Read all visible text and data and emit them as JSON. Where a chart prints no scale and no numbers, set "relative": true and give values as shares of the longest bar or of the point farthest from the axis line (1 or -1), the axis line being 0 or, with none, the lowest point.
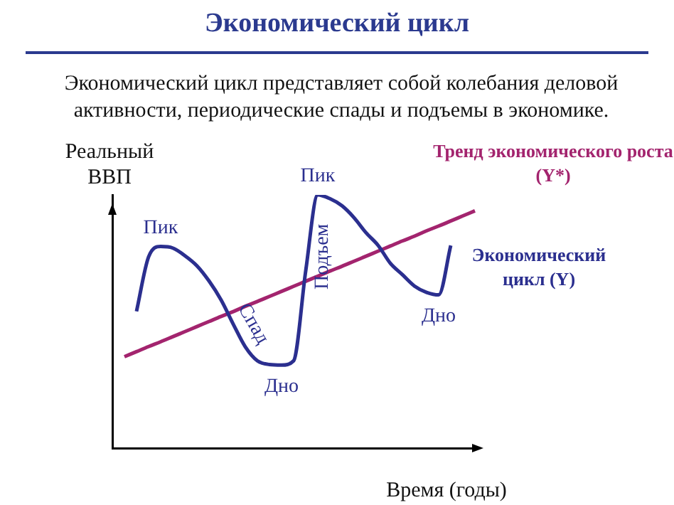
{
  "chart_data": {
    "type": "line",
    "relative": true,
    "title": "Экономический  цикл",
    "subtitle": "Экономический  цикл представляет собой колебания деловой активности, периодические спады и подъемы в экономике.",
    "xlabel": "Время (годы)",
    "ylabel": "Реальный ВВП",
    "tick_labels": false,
    "grid": false,
    "legend": false,
    "marker": "none",
    "categories": [
      null,
      null,
      null,
      null,
      null,
      null,
      null,
      null,
      null,
      null,
      null,
      null,
      null,
      null,
      null,
      null,
      null,
      null,
      null,
      null,
      null,
      null,
      null,
      null,
      null,
      null,
      null,
      null,
      null,
      null,
      null
    ],
    "series": [
      {
        "name": "Экономический цикл (Y)",
        "color": "#2b2f8f",
        "values": [
          null,
          null,
          0.54,
          0.755,
          0.796,
          0.79,
          0.76,
          0.72,
          0.66,
          0.585,
          0.49,
          0.4,
          0.345,
          0.33,
          0.328,
          0.345,
          0.7,
          1.0,
          0.985,
          0.957,
          0.91,
          0.85,
          0.8,
          0.73,
          0.685,
          0.64,
          0.615,
          0.605,
          0.8,
          null,
          null
        ]
      },
      {
        "name": "Тренд экономического роста (Y*)",
        "color": "#a3246e",
        "values": [
          null,
          0.361,
          0.381,
          0.401,
          0.42,
          0.44,
          0.46,
          0.48,
          0.5,
          0.52,
          0.539,
          0.56,
          0.579,
          0.599,
          0.619,
          0.639,
          0.659,
          0.679,
          0.699,
          0.718,
          0.738,
          0.758,
          0.778,
          0.798,
          0.818,
          0.837,
          0.858,
          0.877,
          0.897,
          0.917,
          0.937
        ]
      }
    ],
    "annotations": [
      "Пик",
      "Спад",
      "Подъем",
      "Пик",
      "Дно",
      "Дно"
    ]
  }
}
